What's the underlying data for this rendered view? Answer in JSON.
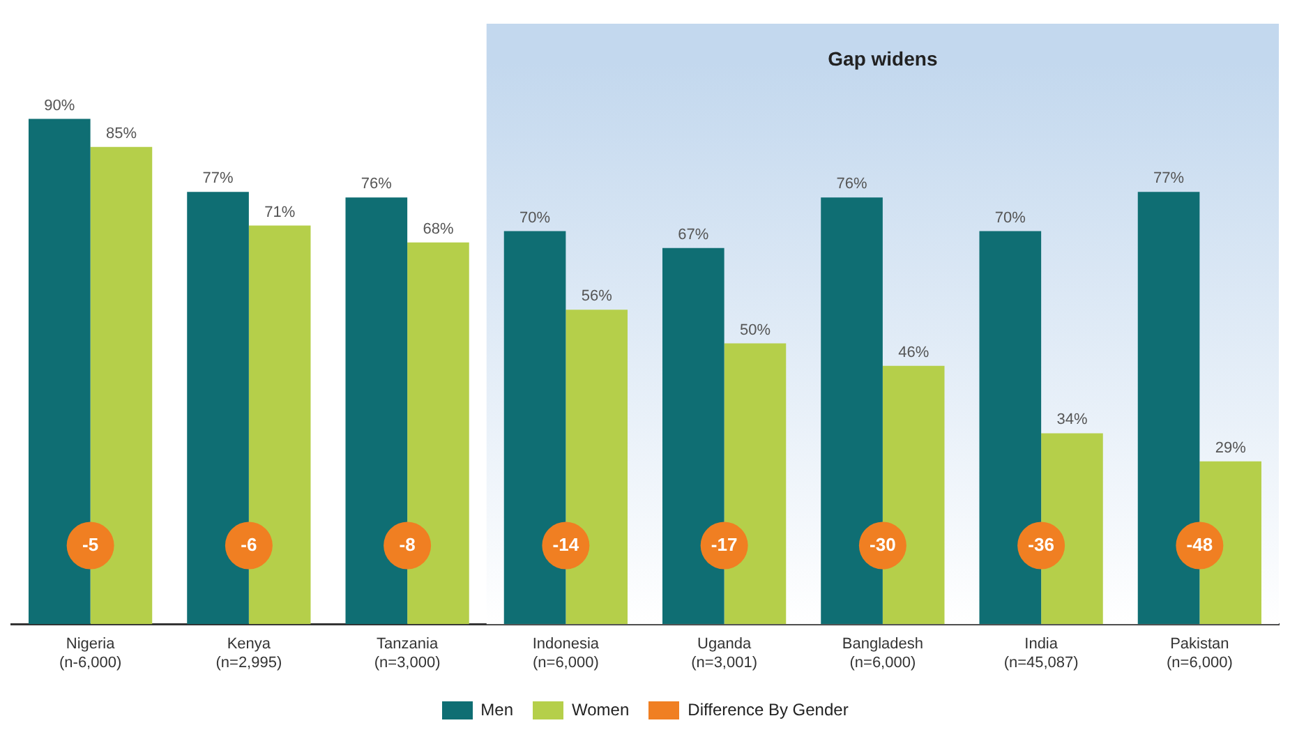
{
  "chart_data": {
    "type": "bar",
    "categories": [
      "Nigeria\n(n-6,000)",
      "Kenya\n(n=2,995)",
      "Tanzania\n(n=3,000)",
      "Indonesia\n(n=6,000)",
      "Uganda\n(n=3,001)",
      "Bangladesh\n(n=6,000)",
      "India\n(n=45,087)",
      "Pakistan\n(n=6,000)"
    ],
    "series": [
      {
        "name": "Men",
        "color": "#0f6e73",
        "values": [
          90,
          77,
          76,
          70,
          67,
          76,
          70,
          77
        ],
        "value_labels": [
          "90%",
          "77%",
          "76%",
          "70%",
          "67%",
          "76%",
          "70%",
          "77%"
        ]
      },
      {
        "name": "Women",
        "color": "#b5cf4a",
        "values": [
          85,
          71,
          68,
          56,
          50,
          46,
          34,
          29
        ],
        "value_labels": [
          "85%",
          "71%",
          "68%",
          "56%",
          "50%",
          "46%",
          "34%",
          "29%"
        ]
      }
    ],
    "annotations": [
      "Difference By Gender",
      {
        "text": "-5",
        "x": "Nigeria\n(n-6,000)"
      },
      {
        "text": "-6",
        "x": "Kenya\n(n=2,995)"
      },
      {
        "text": "-8",
        "x": "Tanzania\n(n=3,000)"
      },
      {
        "text": "-14",
        "x": "Indonesia\n(n=6,000)"
      },
      {
        "text": "-17",
        "x": "Uganda\n(n=3,001)"
      },
      {
        "text": "-30",
        "x": "Bangladesh\n(n=6,000)"
      },
      {
        "text": "-36",
        "x": "India\n(n=45,087)"
      },
      {
        "text": "-48",
        "x": "Pakistan\n(n=6,000)"
      }
    ],
    "tick_labels": "x",
    "grid": false,
    "legend": "bottom",
    "bands": [
      {
        "axis": "x",
        "from": "Indonesia\n(n=6,000)",
        "to": "Pakistan\n(n=6,000)",
        "label": "Gap widens",
        "color": "#c3d8ee"
      }
    ]
  }
}
